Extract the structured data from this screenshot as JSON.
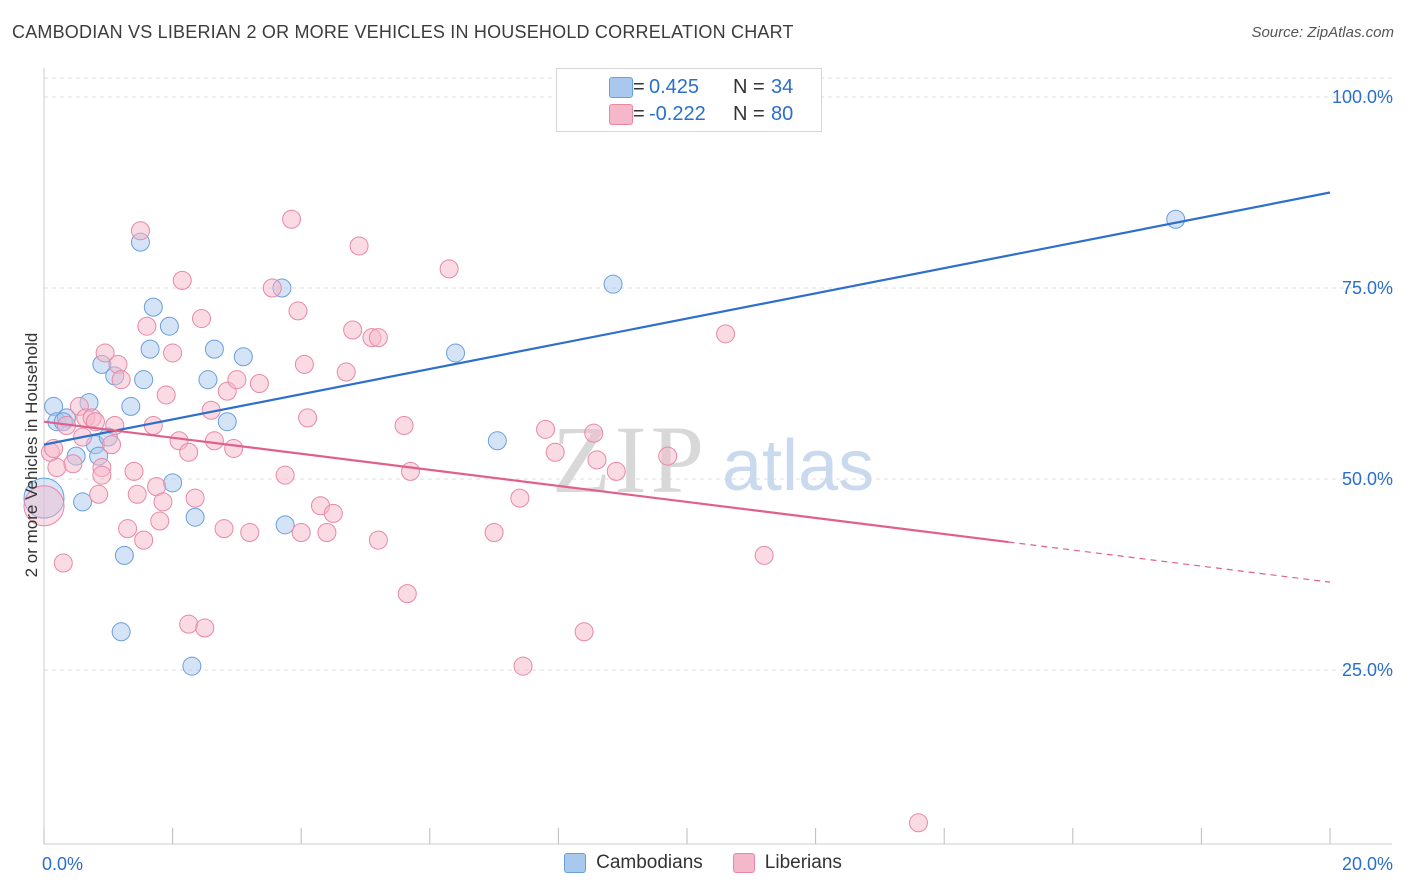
{
  "title": "CAMBODIAN VS LIBERIAN 2 OR MORE VEHICLES IN HOUSEHOLD CORRELATION CHART",
  "source": "Source: ZipAtlas.com",
  "watermark": {
    "zip": "ZIP",
    "atlas": "atlas"
  },
  "colors": {
    "blue_fill": "#a9c8ee",
    "blue_stroke": "#6a9fdc",
    "blue_line": "#2f6fcc",
    "pink_fill": "#f5b8ca",
    "pink_stroke": "#e888a6",
    "pink_line": "#e0608c",
    "tick_text": "#2a6fc9",
    "grid": "#dddddd"
  },
  "legend_top": {
    "rows": [
      {
        "r_label": "R =",
        "r_value": "0.425",
        "n_label": "N =",
        "n_value": "34",
        "color": "blue"
      },
      {
        "r_label": "R =",
        "r_value": "-0.222",
        "n_label": "N =",
        "n_value": "80",
        "color": "pink"
      }
    ]
  },
  "legend_bottom": [
    {
      "label": "Cambodians",
      "color": "blue"
    },
    {
      "label": "Liberians",
      "color": "pink"
    }
  ],
  "chart_data": {
    "type": "scatter",
    "ylabel": "2 or more Vehicles in Household",
    "xlim": [
      0,
      20
    ],
    "ylim": [
      0,
      102
    ],
    "x_tick_labels": [
      {
        "value": 0,
        "label": "0.0%"
      },
      {
        "value": 20,
        "label": "20.0%"
      }
    ],
    "y_tick_labels": [
      {
        "value": 100,
        "label": "100.0%"
      },
      {
        "value": 75,
        "label": "75.0%"
      },
      {
        "value": 50,
        "label": "50.0%"
      },
      {
        "value": 25,
        "label": "25.0%"
      }
    ],
    "x_minor_ticks": [
      0,
      2,
      4,
      6,
      8,
      10,
      12,
      14,
      16,
      18,
      20
    ],
    "grid_y": [
      25,
      50,
      75,
      100
    ],
    "series": [
      {
        "name": "Cambodians",
        "color": "blue",
        "trend": {
          "x0": 0,
          "y0": 54.5,
          "x1": 20,
          "y1": 87.5,
          "solid_until": 20
        },
        "points": [
          [
            0.0,
            47.5,
            "large"
          ],
          [
            0.15,
            59.5
          ],
          [
            0.2,
            57.5
          ],
          [
            0.35,
            58.0
          ],
          [
            0.3,
            57.5
          ],
          [
            0.5,
            53.0
          ],
          [
            0.6,
            47.0
          ],
          [
            0.7,
            60.0
          ],
          [
            0.8,
            54.5
          ],
          [
            0.85,
            53.0
          ],
          [
            0.9,
            65.0
          ],
          [
            1.0,
            55.5
          ],
          [
            1.1,
            63.5
          ],
          [
            1.25,
            40.0
          ],
          [
            1.35,
            59.5
          ],
          [
            1.5,
            81.0
          ],
          [
            1.55,
            63.0
          ],
          [
            1.65,
            67.0
          ],
          [
            1.7,
            72.5
          ],
          [
            1.95,
            70.0
          ],
          [
            2.0,
            49.5
          ],
          [
            2.3,
            25.5
          ],
          [
            2.35,
            45.0
          ],
          [
            2.55,
            63.0
          ],
          [
            2.65,
            67.0
          ],
          [
            2.85,
            57.5
          ],
          [
            3.1,
            66.0
          ],
          [
            3.7,
            75.0
          ],
          [
            3.75,
            44.0
          ],
          [
            6.4,
            66.5
          ],
          [
            7.05,
            55.0
          ],
          [
            8.85,
            75.5
          ],
          [
            1.2,
            30.0
          ],
          [
            17.6,
            84.0
          ]
        ]
      },
      {
        "name": "Liberians",
        "color": "pink",
        "trend": {
          "x0": 0,
          "y0": 57.5,
          "x1": 20,
          "y1": 36.5,
          "solid_until": 15
        },
        "points": [
          [
            0.0,
            46.5,
            "large"
          ],
          [
            0.1,
            53.5
          ],
          [
            0.15,
            54.0
          ],
          [
            0.2,
            51.5
          ],
          [
            0.3,
            39.0
          ],
          [
            0.35,
            57.0
          ],
          [
            0.45,
            52.0
          ],
          [
            0.55,
            59.5
          ],
          [
            0.6,
            55.5
          ],
          [
            0.65,
            58.0
          ],
          [
            0.75,
            58.0
          ],
          [
            0.8,
            57.5
          ],
          [
            0.85,
            48.0
          ],
          [
            0.9,
            51.5
          ],
          [
            0.9,
            50.5
          ],
          [
            0.95,
            66.5
          ],
          [
            1.05,
            54.5
          ],
          [
            1.1,
            57.0
          ],
          [
            1.15,
            65.0
          ],
          [
            1.2,
            63.0
          ],
          [
            1.3,
            43.5
          ],
          [
            1.4,
            51.0
          ],
          [
            1.45,
            48.0
          ],
          [
            1.5,
            82.5
          ],
          [
            1.55,
            42.0
          ],
          [
            1.6,
            70.0
          ],
          [
            1.7,
            57.0
          ],
          [
            1.75,
            49.0
          ],
          [
            1.8,
            44.5
          ],
          [
            1.85,
            47.0
          ],
          [
            1.9,
            61.0
          ],
          [
            2.0,
            66.5
          ],
          [
            2.1,
            55.0
          ],
          [
            2.15,
            76.0
          ],
          [
            2.25,
            31.0
          ],
          [
            2.25,
            53.5
          ],
          [
            2.35,
            47.5
          ],
          [
            2.45,
            71.0
          ],
          [
            2.5,
            30.5
          ],
          [
            2.6,
            59.0
          ],
          [
            2.65,
            55.0
          ],
          [
            2.8,
            43.5
          ],
          [
            2.85,
            61.5
          ],
          [
            2.95,
            54.0
          ],
          [
            3.0,
            63.0
          ],
          [
            3.2,
            43.0
          ],
          [
            3.35,
            62.5
          ],
          [
            3.55,
            75.0
          ],
          [
            3.75,
            50.5
          ],
          [
            3.85,
            84.0
          ],
          [
            3.95,
            72.0
          ],
          [
            4.0,
            43.0
          ],
          [
            4.05,
            65.0
          ],
          [
            4.1,
            58.0
          ],
          [
            4.3,
            46.5
          ],
          [
            4.4,
            43.0
          ],
          [
            4.5,
            45.5
          ],
          [
            4.7,
            64.0
          ],
          [
            4.8,
            69.5
          ],
          [
            4.9,
            80.5
          ],
          [
            5.1,
            68.5
          ],
          [
            5.2,
            68.5
          ],
          [
            5.2,
            42.0
          ],
          [
            5.6,
            57.0
          ],
          [
            5.65,
            35.0
          ],
          [
            5.7,
            51.0
          ],
          [
            6.3,
            77.5
          ],
          [
            7.0,
            43.0
          ],
          [
            7.4,
            47.5
          ],
          [
            7.8,
            56.5
          ],
          [
            7.95,
            53.5
          ],
          [
            8.55,
            56.0
          ],
          [
            8.6,
            52.5
          ],
          [
            8.9,
            51.0
          ],
          [
            7.45,
            25.5
          ],
          [
            8.4,
            30.0
          ],
          [
            9.7,
            53.0
          ],
          [
            10.6,
            69.0
          ],
          [
            11.2,
            40.0
          ],
          [
            13.6,
            5.0
          ]
        ]
      }
    ]
  }
}
